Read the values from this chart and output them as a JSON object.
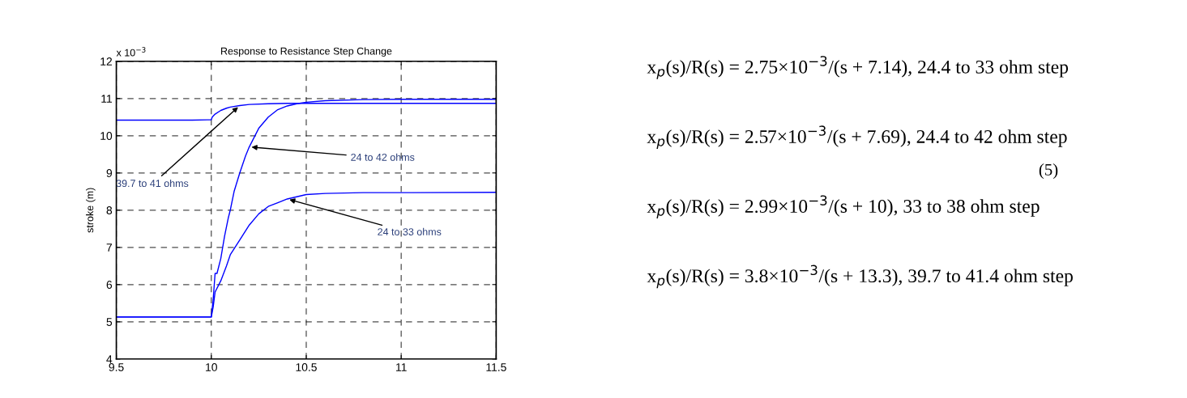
{
  "chart_data": {
    "type": "line",
    "title": "Response to Resistance Step Change",
    "ylabel": "stroke (m)",
    "xlim": [
      9.5,
      11.5
    ],
    "xticks": [
      9.5,
      10,
      10.5,
      11,
      11.5
    ],
    "ylim": [
      4,
      12
    ],
    "yticks": [
      4,
      5,
      6,
      7,
      8,
      9,
      10,
      11,
      12
    ],
    "grid": true,
    "marker": "none",
    "line_style": "solid",
    "series": [
      {
        "color": "#0000ff",
        "x": [
          9.5,
          9.7,
          9.9,
          10.0,
          10.005,
          10.02,
          10.05,
          10.08,
          10.1,
          10.15,
          10.2,
          10.3,
          10.4,
          10.5,
          11.0,
          11.5
        ],
        "values": [
          10.42,
          10.42,
          10.42,
          10.43,
          10.5,
          10.58,
          10.68,
          10.74,
          10.77,
          10.81,
          10.84,
          10.86,
          10.87,
          10.87,
          10.87,
          10.87
        ]
      },
      {
        "color": "#0000ff",
        "x": [
          9.5,
          9.8,
          10.0,
          10.01,
          10.02,
          10.03,
          10.05,
          10.07,
          10.09,
          10.1,
          10.12,
          10.15,
          10.18,
          10.2,
          10.25,
          10.3,
          10.35,
          10.4,
          10.45,
          10.5,
          10.6,
          10.8,
          11.0,
          11.5
        ],
        "values": [
          5.13,
          5.13,
          5.13,
          5.6,
          6.3,
          6.3,
          6.7,
          7.3,
          7.8,
          8.0,
          8.5,
          9.0,
          9.45,
          9.7,
          10.2,
          10.5,
          10.7,
          10.8,
          10.86,
          10.9,
          10.94,
          10.97,
          10.98,
          10.98
        ]
      },
      {
        "color": "#0000ff",
        "x": [
          9.5,
          9.8,
          10.0,
          10.01,
          10.02,
          10.05,
          10.08,
          10.1,
          10.15,
          10.2,
          10.25,
          10.3,
          10.35,
          10.4,
          10.5,
          10.6,
          10.8,
          11.0,
          11.5
        ],
        "values": [
          5.13,
          5.13,
          5.13,
          5.4,
          5.8,
          6.1,
          6.5,
          6.8,
          7.2,
          7.6,
          7.9,
          8.1,
          8.2,
          8.3,
          8.42,
          8.45,
          8.47,
          8.47,
          8.48
        ]
      }
    ],
    "annotations": [
      "x 10$^{−3}$",
      {
        "text": "39.7 to 41 ohms",
        "x": 10.15,
        "y": 10.81
      },
      {
        "text": "24 to 42 ohms",
        "x": 10.2,
        "y": 9.7
      },
      {
        "text": "24 to 33 ohms",
        "x": 10.4,
        "y": 8.3
      },
      "x$_{p}$(s)/R(s) = 2.75×10$^{−3}$/(s + 7.14), 24.4 to 33 ohm step",
      "x$_{p}$(s)/R(s) = 2.57×10$^{−3}$/(s + 7.69), 24.4 to 42 ohm step",
      "x$_{p}$(s)/R(s) = 2.99×10$^{−3}$/(s + 10), 33 to 38 ohm step",
      "x$_{p}$(s)/R(s) = 3.8×10$^{−3}$/(s + 13.3), 39.7 to 41.4 ohm step",
      "(5)"
    ]
  }
}
